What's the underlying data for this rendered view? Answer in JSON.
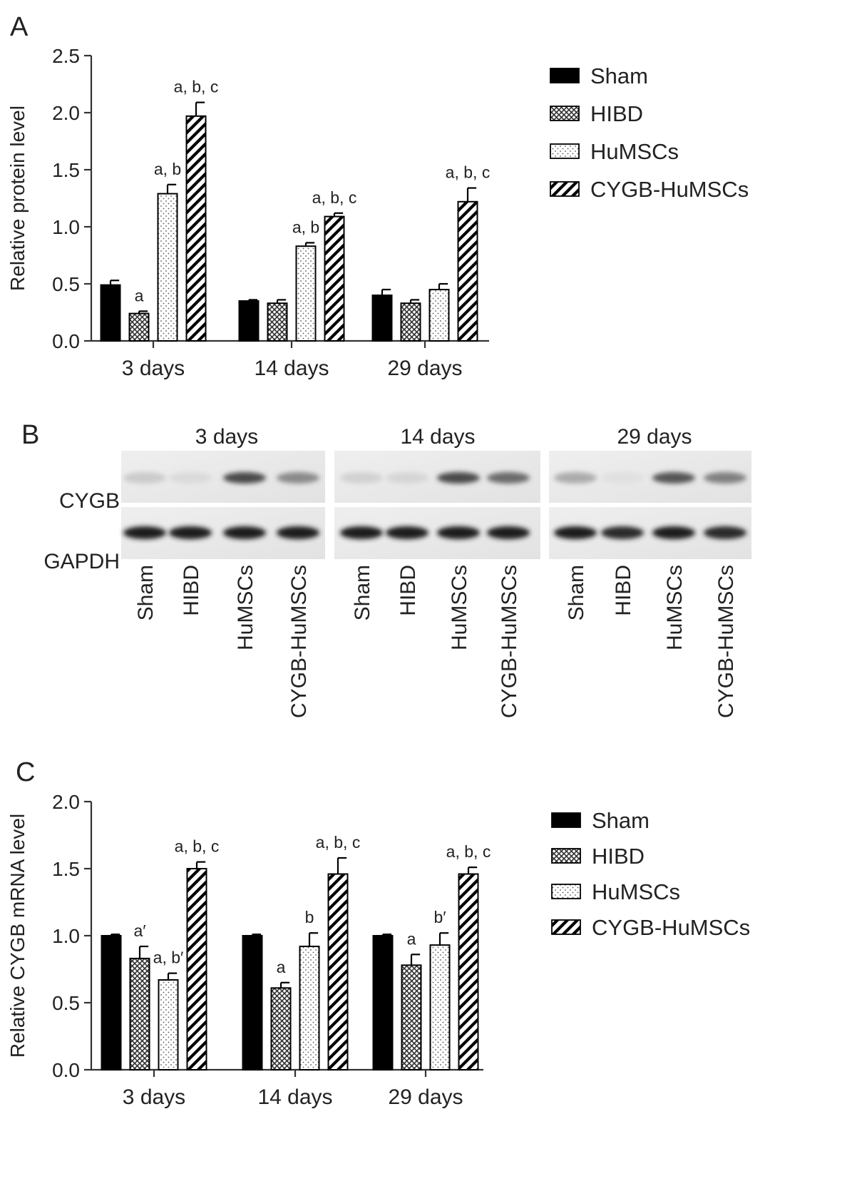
{
  "panel_labels": {
    "a": "A",
    "b": "B",
    "c": "C"
  },
  "series_styles": [
    {
      "name": "Sham",
      "pattern": "solid",
      "color": "#000000"
    },
    {
      "name": "HIBD",
      "pattern": "crosshatch",
      "color": "#555555"
    },
    {
      "name": "HuMSCs",
      "pattern": "dots",
      "color": "#777777"
    },
    {
      "name": "CYGB-HuMSCs",
      "pattern": "diagonal",
      "color": "#000000"
    }
  ],
  "chart_data": [
    {
      "panel": "A",
      "type": "bar",
      "ylabel": "Relative protein level",
      "ylim": [
        0,
        2.5
      ],
      "yticks": [
        "0.0",
        "0.5",
        "1.0",
        "1.5",
        "2.0",
        "2.5"
      ],
      "categories": [
        "3 days",
        "14 days",
        "29 days"
      ],
      "legend_position": "right",
      "series": [
        {
          "name": "Sham",
          "values": [
            0.49,
            0.35,
            0.4
          ],
          "errors": [
            0.04,
            0.01,
            0.05
          ],
          "labels": [
            "",
            "",
            ""
          ]
        },
        {
          "name": "HIBD",
          "values": [
            0.24,
            0.33,
            0.33
          ],
          "errors": [
            0.02,
            0.03,
            0.03
          ],
          "labels": [
            "a",
            "",
            ""
          ]
        },
        {
          "name": "HuMSCs",
          "values": [
            1.29,
            0.83,
            0.45
          ],
          "errors": [
            0.08,
            0.03,
            0.05
          ],
          "labels": [
            "a, b",
            "a, b",
            ""
          ]
        },
        {
          "name": "CYGB-HuMSCs",
          "values": [
            1.97,
            1.09,
            1.22
          ],
          "errors": [
            0.12,
            0.03,
            0.12
          ],
          "labels": [
            "a, b, c",
            "a, b, c",
            "a, b, c"
          ]
        }
      ]
    },
    {
      "panel": "C",
      "type": "bar",
      "ylabel": "Relative CYGB mRNA level",
      "ylim": [
        0,
        2.0
      ],
      "yticks": [
        "0.0",
        "0.5",
        "1.0",
        "1.5",
        "2.0"
      ],
      "categories": [
        "3 days",
        "14 days",
        "29 days"
      ],
      "legend_position": "right",
      "series": [
        {
          "name": "Sham",
          "values": [
            1.0,
            1.0,
            1.0
          ],
          "errors": [
            0.01,
            0.01,
            0.01
          ],
          "labels": [
            "",
            "",
            ""
          ]
        },
        {
          "name": "HIBD",
          "values": [
            0.83,
            0.61,
            0.78
          ],
          "errors": [
            0.09,
            0.04,
            0.08
          ],
          "labels": [
            "a′",
            "a",
            "a"
          ]
        },
        {
          "name": "HuMSCs",
          "values": [
            0.67,
            0.92,
            0.93
          ],
          "errors": [
            0.05,
            0.1,
            0.09
          ],
          "labels": [
            "a, b′",
            "b",
            "b′"
          ]
        },
        {
          "name": "CYGB-HuMSCs",
          "values": [
            1.5,
            1.46,
            1.46
          ],
          "errors": [
            0.05,
            0.12,
            0.05
          ],
          "labels": [
            "a, b, c",
            "a, b, c",
            "a, b, c"
          ]
        }
      ]
    }
  ],
  "blot": {
    "timepoints": [
      "3 days",
      "14 days",
      "29 days"
    ],
    "rows": [
      "CYGB",
      "GAPDH"
    ],
    "lanes": [
      "Sham",
      "HIBD",
      "HuMSCs",
      "CYGB-HuMSCs"
    ],
    "cygb_intensity": [
      [
        0.15,
        0.08,
        0.75,
        0.45
      ],
      [
        0.12,
        0.1,
        0.75,
        0.6
      ],
      [
        0.3,
        0.05,
        0.7,
        0.5
      ]
    ],
    "gapdh_intensity": [
      [
        0.95,
        0.95,
        0.95,
        0.95
      ],
      [
        0.95,
        0.95,
        0.95,
        0.95
      ],
      [
        0.95,
        0.9,
        0.95,
        0.9
      ]
    ]
  }
}
